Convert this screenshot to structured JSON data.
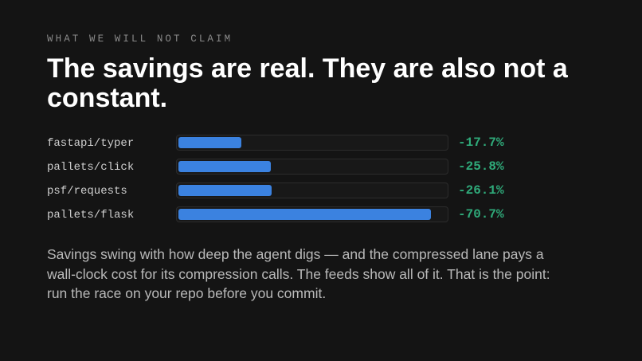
{
  "eyebrow": "WHAT WE WILL NOT CLAIM",
  "title": "The savings are real. They are also not a constant.",
  "colors": {
    "background": "#141414",
    "bar": "#3b82e0",
    "value": "#2faa7a"
  },
  "chart_data": {
    "type": "bar",
    "orientation": "horizontal",
    "categories": [
      "fastapi/typer",
      "pallets/click",
      "psf/requests",
      "pallets/flask"
    ],
    "values": [
      -17.7,
      -25.8,
      -26.1,
      -70.7
    ],
    "value_labels": [
      "-17.7%",
      "-25.8%",
      "-26.1%",
      "-70.7%"
    ],
    "unit": "%",
    "xlim": [
      0,
      75
    ],
    "grid": false,
    "title": "",
    "xlabel": "",
    "ylabel": ""
  },
  "body": "Savings swing with how deep the agent digs — and the compressed lane pays a wall-clock cost for its compression calls. The feeds show all of it. That is the point: run the race on your repo before you commit."
}
